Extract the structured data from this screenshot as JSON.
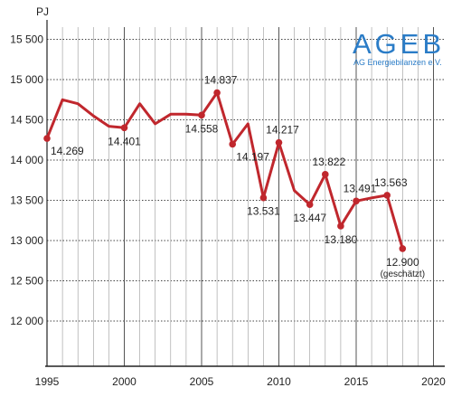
{
  "chart_data": {
    "type": "line",
    "unit": "PJ",
    "xlim": [
      1995,
      2020
    ],
    "ylim": [
      11600,
      15600
    ],
    "x_ticks": [
      1995,
      2000,
      2005,
      2010,
      2015,
      2020
    ],
    "y_ticks": [
      {
        "value": 12000,
        "label": "12 000"
      },
      {
        "value": 12500,
        "label": "12 500"
      },
      {
        "value": 13000,
        "label": "13 000"
      },
      {
        "value": 13500,
        "label": "13 500"
      },
      {
        "value": 14000,
        "label": "14 000"
      },
      {
        "value": 14500,
        "label": "14 500"
      },
      {
        "value": 15000,
        "label": "15 000"
      },
      {
        "value": 15500,
        "label": "15 500"
      }
    ],
    "grid": "horizontal dotted, vertical solid",
    "line_color": "#c0272d",
    "series": [
      {
        "x": [
          1995,
          1996,
          1997,
          1998,
          1999,
          2000,
          2001,
          2002,
          2003,
          2004,
          2005,
          2006,
          2007,
          2008,
          2009,
          2010,
          2011,
          2012,
          2013,
          2014,
          2015,
          2016,
          2017,
          2018
        ],
        "y": [
          14269,
          14750,
          14700,
          14550,
          14420,
          14401,
          14700,
          14450,
          14570,
          14570,
          14558,
          14837,
          14197,
          14450,
          13531,
          14217,
          13620,
          13447,
          13822,
          13180,
          13491,
          13530,
          13563,
          12900
        ]
      }
    ],
    "markers": [
      1995,
      2000,
      2005,
      2006,
      2007,
      2009,
      2010,
      2012,
      2013,
      2014,
      2015,
      2017,
      2018
    ],
    "annotations": [
      {
        "x": 1995,
        "y": 14269,
        "text": "14.269",
        "pos": "below-right"
      },
      {
        "x": 2000,
        "y": 14401,
        "text": "14.401",
        "pos": "below"
      },
      {
        "x": 2005,
        "y": 14558,
        "text": "14.558",
        "pos": "below"
      },
      {
        "x": 2006,
        "y": 14837,
        "text": "14.837",
        "pos": "above"
      },
      {
        "x": 2007,
        "y": 14197,
        "text": "14.197",
        "pos": "below-right"
      },
      {
        "x": 2009,
        "y": 13531,
        "text": "13.531",
        "pos": "below"
      },
      {
        "x": 2010,
        "y": 14217,
        "text": "14.217",
        "pos": "above"
      },
      {
        "x": 2012,
        "y": 13447,
        "text": "13.447",
        "pos": "below"
      },
      {
        "x": 2013,
        "y": 13822,
        "text": "13.822",
        "pos": "above"
      },
      {
        "x": 2014,
        "y": 13180,
        "text": "13.180",
        "pos": "below"
      },
      {
        "x": 2015,
        "y": 13491,
        "text": "13.491",
        "pos": "above"
      },
      {
        "x": 2017,
        "y": 13563,
        "text": "13.563",
        "pos": "above"
      },
      {
        "x": 2018,
        "y": 12900,
        "text": "12.900",
        "pos": "below",
        "note": "(geschätzt)"
      }
    ]
  },
  "logo": {
    "name": "AGEB",
    "subtitle": "AG Energiebilanzen e.V."
  }
}
